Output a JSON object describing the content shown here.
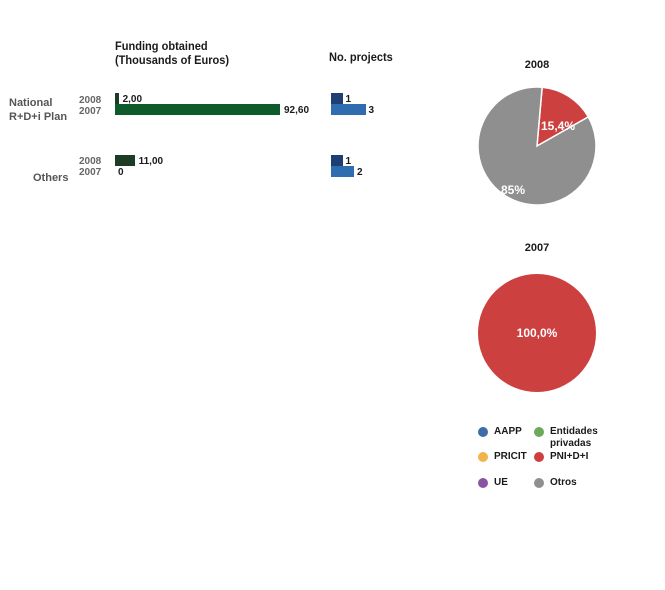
{
  "funding": {
    "header_line1": "Funding obtained",
    "header_line2": "(Thousands of Euros)"
  },
  "projects": {
    "header": "No. projects"
  },
  "rows": [
    {
      "label_line1": "National",
      "label_line2": "R+D+i Plan",
      "year_a": "2008",
      "year_b": "2007",
      "funding_a": 2.0,
      "funding_a_label": "2,00",
      "funding_b": 92.6,
      "funding_b_label": "92,60",
      "projects_a": 1,
      "projects_a_label": "1",
      "projects_b": 3,
      "projects_b_label": "3"
    },
    {
      "label_line1": "Others",
      "label_line2": "",
      "year_a": "2008",
      "year_b": "2007",
      "funding_a": 11.0,
      "funding_a_label": "11,00",
      "funding_b": 0,
      "funding_b_label": "0",
      "projects_a": 1,
      "projects_a_label": "1",
      "projects_b": 2,
      "projects_b_label": "2"
    }
  ],
  "colors": {
    "funding_2008": "#1c3d24",
    "funding_2007": "#0d5a2a",
    "projects_2008": "#1d3f73",
    "projects_2007": "#2f6db0"
  },
  "chart_data": [
    {
      "type": "bar",
      "title": "Funding obtained (Thousands of Euros)",
      "categories": [
        "National R+D+i Plan",
        "Others"
      ],
      "series": [
        {
          "name": "2008",
          "values": [
            2.0,
            11.0
          ]
        },
        {
          "name": "2007",
          "values": [
            92.6,
            0
          ]
        }
      ]
    },
    {
      "type": "bar",
      "title": "No. projects",
      "categories": [
        "National R+D+i Plan",
        "Others"
      ],
      "series": [
        {
          "name": "2008",
          "values": [
            1,
            1
          ]
        },
        {
          "name": "2007",
          "values": [
            3,
            2
          ]
        }
      ]
    },
    {
      "type": "pie",
      "title": "2008",
      "slices": [
        {
          "name": "PNI+D+I",
          "value": 15.4,
          "label": "15,4%",
          "color": "#cd4040"
        },
        {
          "name": "Otros",
          "value": 84.6,
          "label": "85%",
          "color": "#8f8f8f"
        }
      ]
    },
    {
      "type": "pie",
      "title": "2007",
      "slices": [
        {
          "name": "PNI+D+I",
          "value": 100,
          "label": "100,0%",
          "color": "#cd4040"
        }
      ]
    }
  ],
  "legend": [
    {
      "label_line1": "AAPP",
      "label_line2": "",
      "color": "#3a6ea5"
    },
    {
      "label_line1": "Entidades",
      "label_line2": "privadas",
      "color": "#6aaa5a"
    },
    {
      "label_line1": "PRICIT",
      "label_line2": "",
      "color": "#f0b44a"
    },
    {
      "label_line1": "PNI+D+I",
      "label_line2": "",
      "color": "#cd4040"
    },
    {
      "label_line1": "UE",
      "label_line2": "",
      "color": "#8a55a0"
    },
    {
      "label_line1": "Otros",
      "label_line2": "",
      "color": "#8f8f8f"
    }
  ]
}
